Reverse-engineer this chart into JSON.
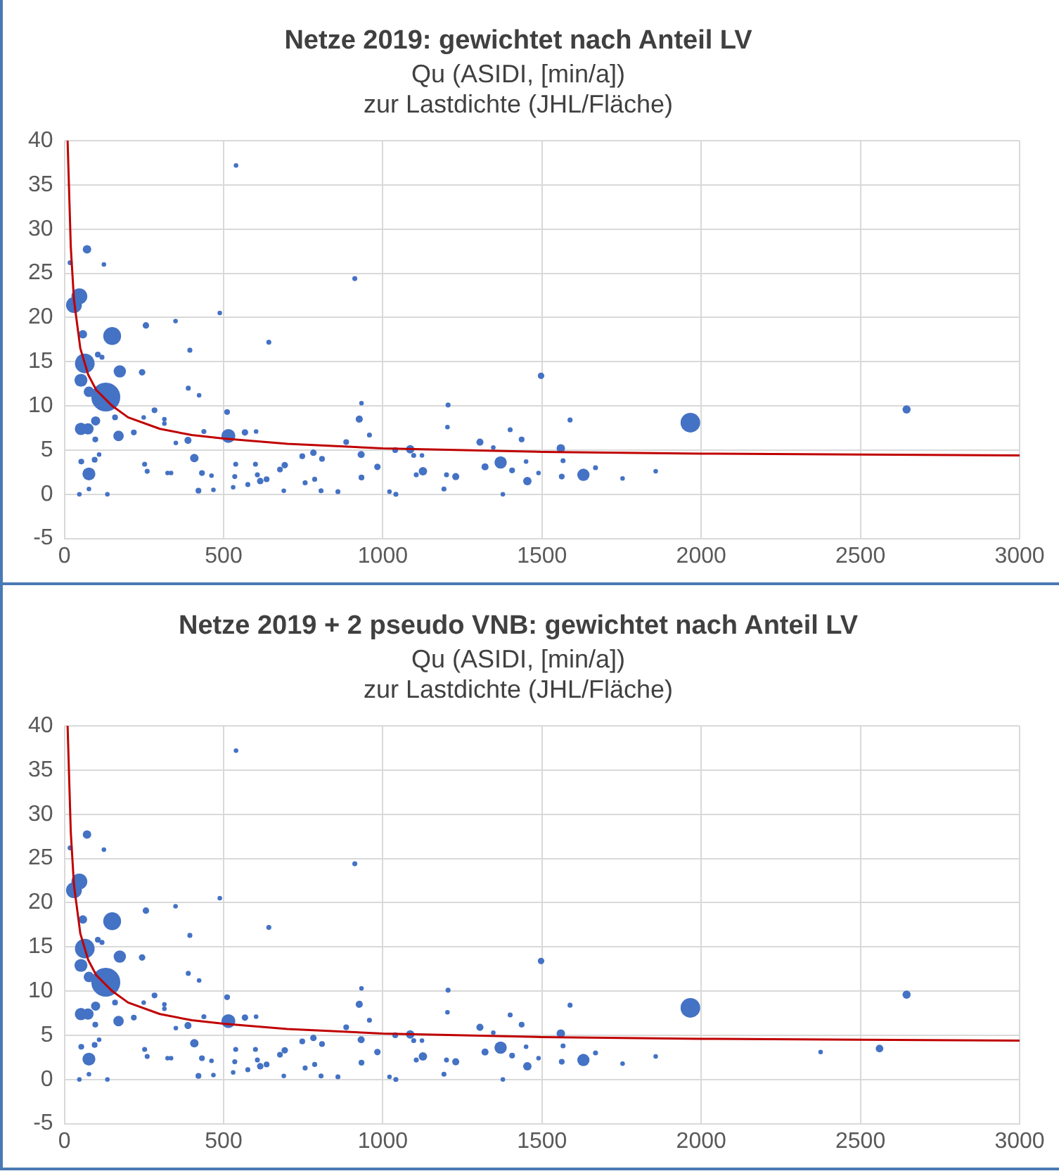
{
  "chart_data": [
    {
      "type": "bubble",
      "title": "Netze 2019: gewichtet nach Anteil LV",
      "subtitle": "Qu (ASIDI, [min/a])\nzur Lastdichte (JHL/Fläche)",
      "xlim": [
        0,
        3000
      ],
      "xticks": [
        0,
        500,
        1000,
        1500,
        2000,
        2500,
        3000
      ],
      "ylim": [
        -5,
        40
      ],
      "yticks": [
        -5,
        0,
        5,
        10,
        15,
        20,
        25,
        30,
        35,
        40
      ],
      "grid": true,
      "series": [
        {
          "type": "bubble",
          "color": "#4472c4",
          "x": [
            18,
            71,
            124,
            30,
            47,
            58,
            150,
            64,
            52,
            77,
            130,
            105,
            118,
            174,
            244,
            256,
            52,
            74,
            98,
            97,
            170,
            159,
            77,
            53,
            95,
            109,
            77,
            135,
            47,
            218,
            283,
            249,
            252,
            260,
            314,
            314,
            324,
            335,
            350,
            388,
            389,
            394,
            349,
            423,
            408,
            438,
            432,
            421,
            462,
            468,
            488,
            511,
            515,
            567,
            539,
            538,
            535,
            530,
            576,
            602,
            606,
            615,
            635,
            600,
            642,
            692,
            677,
            689,
            747,
            782,
            809,
            786,
            756,
            806,
            859,
            885,
            912,
            926,
            932,
            933,
            958,
            933,
            983,
            1039,
            1021,
            1041,
            1086,
            1097,
            1123,
            1126,
            1105,
            1205,
            1203,
            1200,
            1192,
            1229,
            1305,
            1321,
            1370,
            1377,
            1400,
            1406,
            1347,
            1497,
            1436,
            1588,
            1559,
            1566,
            1450,
            1454,
            1489,
            1562,
            1630,
            1668,
            1753,
            1857,
            1966,
            2645
          ],
          "values": [
            26.2,
            27.7,
            26,
            21.4,
            22.4,
            18.1,
            17.9,
            14.8,
            12.9,
            11.6,
            11.0,
            15.8,
            15.5,
            13.9,
            13.8,
            19.1,
            7.4,
            7.4,
            8.3,
            6.2,
            6.6,
            8.7,
            2.3,
            3.7,
            3.9,
            4.5,
            0.6,
            0,
            0,
            7.0,
            9.5,
            8.7,
            3.4,
            2.6,
            8.5,
            8.0,
            2.4,
            2.4,
            5.8,
            6.1,
            12.0,
            16.3,
            19.6,
            11.2,
            4.1,
            7.1,
            2.4,
            0.4,
            2.1,
            0.5,
            20.5,
            9.3,
            6.6,
            7.0,
            37.2,
            3.4,
            2.0,
            0.8,
            1.1,
            7.1,
            2.2,
            1.5,
            1.7,
            3.4,
            17.2,
            3.3,
            2.8,
            0.4,
            4.3,
            4.7,
            4.0,
            1.7,
            1.3,
            0.4,
            0.3,
            5.9,
            24.4,
            8.5,
            4.5,
            1.9,
            6.7,
            10.3,
            3.1,
            5.0,
            0.3,
            0,
            5.1,
            4.4,
            4.4,
            2.6,
            2.2,
            10.1,
            7.6,
            2.2,
            0.6,
            2.0,
            5.9,
            3.1,
            3.6,
            0,
            7.3,
            2.7,
            5.3,
            13.4,
            6.2,
            8.4,
            5.2,
            3.8,
            3.7,
            1.5,
            2.4,
            2.0,
            2.2,
            3.0,
            1.8,
            2.6,
            8.1,
            9.6
          ],
          "sizes": [
            0.03,
            0.085,
            0.025,
            0.3,
            0.3,
            0.085,
            0.38,
            0.46,
            0.2,
            0.13,
            1,
            0.04,
            0.03,
            0.18,
            0.05,
            0.05,
            0.18,
            0.15,
            0.1,
            0.04,
            0.13,
            0.04,
            0.2,
            0.04,
            0.04,
            0.025,
            0.025,
            0.025,
            0.025,
            0.04,
            0.04,
            0.025,
            0.03,
            0.03,
            0.025,
            0.025,
            0.025,
            0.025,
            0.025,
            0.06,
            0.03,
            0.03,
            0.025,
            0.025,
            0.085,
            0.03,
            0.04,
            0.04,
            0.025,
            0.025,
            0.025,
            0.04,
            0.23,
            0.05,
            0.025,
            0.03,
            0.03,
            0.025,
            0.03,
            0.025,
            0.03,
            0.05,
            0.04,
            0.03,
            0.03,
            0.05,
            0.04,
            0.025,
            0.04,
            0.05,
            0.04,
            0.03,
            0.03,
            0.03,
            0.03,
            0.04,
            0.03,
            0.06,
            0.06,
            0.04,
            0.03,
            0.025,
            0.05,
            0.04,
            0.025,
            0.03,
            0.085,
            0.03,
            0.025,
            0.085,
            0.03,
            0.03,
            0.025,
            0.03,
            0.03,
            0.06,
            0.06,
            0.06,
            0.18,
            0.025,
            0.03,
            0.04,
            0.025,
            0.05,
            0.04,
            0.03,
            0.085,
            0.03,
            0.025,
            0.085,
            0.025,
            0.04,
            0.18,
            0.03,
            0.025,
            0.025,
            0.46,
            0.08
          ]
        },
        {
          "type": "line",
          "color": "#c00000",
          "x": [
            10,
            20,
            30,
            50,
            75,
            100,
            150,
            200,
            300,
            400,
            500,
            700,
            1000,
            1500,
            2000,
            2500,
            3000
          ],
          "values": [
            40,
            28,
            22,
            16.5,
            13.5,
            11.8,
            10,
            8.7,
            7.4,
            6.7,
            6.3,
            5.7,
            5.2,
            4.8,
            4.6,
            4.5,
            4.4
          ]
        }
      ]
    },
    {
      "type": "bubble",
      "title": "Netze 2019 + 2 pseudo VNB: gewichtet nach Anteil LV",
      "subtitle": "Qu (ASIDI, [min/a])\nzur Lastdichte (JHL/Fläche)",
      "xlim": [
        0,
        3000
      ],
      "xticks": [
        0,
        500,
        1000,
        1500,
        2000,
        2500,
        3000
      ],
      "ylim": [
        -5,
        40
      ],
      "yticks": [
        -5,
        0,
        5,
        10,
        15,
        20,
        25,
        30,
        35,
        40
      ],
      "grid": true,
      "series": [
        {
          "type": "bubble",
          "color": "#4472c4",
          "x": [
            18,
            71,
            124,
            30,
            47,
            58,
            150,
            64,
            52,
            77,
            130,
            105,
            118,
            174,
            244,
            256,
            52,
            74,
            98,
            97,
            170,
            159,
            77,
            53,
            95,
            109,
            77,
            135,
            47,
            218,
            283,
            249,
            252,
            260,
            314,
            314,
            324,
            335,
            350,
            388,
            389,
            394,
            349,
            423,
            408,
            438,
            432,
            421,
            462,
            468,
            488,
            511,
            515,
            567,
            539,
            538,
            535,
            530,
            576,
            602,
            606,
            615,
            635,
            600,
            642,
            692,
            677,
            689,
            747,
            782,
            809,
            786,
            756,
            806,
            859,
            885,
            912,
            926,
            932,
            933,
            958,
            933,
            983,
            1039,
            1021,
            1041,
            1086,
            1097,
            1123,
            1126,
            1105,
            1205,
            1203,
            1200,
            1192,
            1229,
            1305,
            1321,
            1370,
            1377,
            1400,
            1406,
            1347,
            1497,
            1436,
            1588,
            1559,
            1566,
            1450,
            1454,
            1489,
            1562,
            1630,
            1668,
            1753,
            1857,
            1966,
            2645,
            2375,
            2560
          ],
          "values": [
            26.2,
            27.7,
            26,
            21.4,
            22.4,
            18.1,
            17.9,
            14.8,
            12.9,
            11.6,
            11.0,
            15.8,
            15.5,
            13.9,
            13.8,
            19.1,
            7.4,
            7.4,
            8.3,
            6.2,
            6.6,
            8.7,
            2.3,
            3.7,
            3.9,
            4.5,
            0.6,
            0,
            0,
            7.0,
            9.5,
            8.7,
            3.4,
            2.6,
            8.5,
            8.0,
            2.4,
            2.4,
            5.8,
            6.1,
            12.0,
            16.3,
            19.6,
            11.2,
            4.1,
            7.1,
            2.4,
            0.4,
            2.1,
            0.5,
            20.5,
            9.3,
            6.6,
            7.0,
            37.2,
            3.4,
            2.0,
            0.8,
            1.1,
            7.1,
            2.2,
            1.5,
            1.7,
            3.4,
            17.2,
            3.3,
            2.8,
            0.4,
            4.3,
            4.7,
            4.0,
            1.7,
            1.3,
            0.4,
            0.3,
            5.9,
            24.4,
            8.5,
            4.5,
            1.9,
            6.7,
            10.3,
            3.1,
            5.0,
            0.3,
            0,
            5.1,
            4.4,
            4.4,
            2.6,
            2.2,
            10.1,
            7.6,
            2.2,
            0.6,
            2.0,
            5.9,
            3.1,
            3.6,
            0,
            7.3,
            2.7,
            5.3,
            13.4,
            6.2,
            8.4,
            5.2,
            3.8,
            3.7,
            1.5,
            2.4,
            2.0,
            2.2,
            3.0,
            1.8,
            2.6,
            8.1,
            9.6,
            3.1,
            3.5
          ],
          "sizes": [
            0.03,
            0.085,
            0.025,
            0.3,
            0.3,
            0.085,
            0.38,
            0.46,
            0.2,
            0.13,
            1,
            0.04,
            0.03,
            0.18,
            0.05,
            0.05,
            0.18,
            0.15,
            0.1,
            0.04,
            0.13,
            0.04,
            0.2,
            0.04,
            0.04,
            0.025,
            0.025,
            0.025,
            0.025,
            0.04,
            0.04,
            0.025,
            0.03,
            0.03,
            0.025,
            0.025,
            0.025,
            0.025,
            0.025,
            0.06,
            0.03,
            0.03,
            0.025,
            0.025,
            0.085,
            0.03,
            0.04,
            0.04,
            0.025,
            0.025,
            0.025,
            0.04,
            0.23,
            0.05,
            0.025,
            0.03,
            0.03,
            0.025,
            0.03,
            0.025,
            0.03,
            0.05,
            0.04,
            0.03,
            0.03,
            0.05,
            0.04,
            0.025,
            0.04,
            0.05,
            0.04,
            0.03,
            0.03,
            0.03,
            0.03,
            0.04,
            0.03,
            0.06,
            0.06,
            0.04,
            0.03,
            0.025,
            0.05,
            0.04,
            0.025,
            0.03,
            0.085,
            0.03,
            0.025,
            0.085,
            0.03,
            0.03,
            0.025,
            0.03,
            0.03,
            0.06,
            0.06,
            0.06,
            0.18,
            0.025,
            0.03,
            0.04,
            0.025,
            0.05,
            0.04,
            0.03,
            0.085,
            0.03,
            0.025,
            0.085,
            0.025,
            0.04,
            0.18,
            0.03,
            0.025,
            0.025,
            0.46,
            0.08,
            0.025,
            0.07
          ]
        },
        {
          "type": "line",
          "color": "#c00000",
          "x": [
            10,
            20,
            30,
            50,
            75,
            100,
            150,
            200,
            300,
            400,
            500,
            700,
            1000,
            1500,
            2000,
            2500,
            3000
          ],
          "values": [
            40,
            28,
            22,
            16.5,
            13.5,
            11.8,
            10,
            8.7,
            7.4,
            6.7,
            6.3,
            5.7,
            5.2,
            4.8,
            4.6,
            4.5,
            4.4
          ]
        }
      ]
    }
  ]
}
